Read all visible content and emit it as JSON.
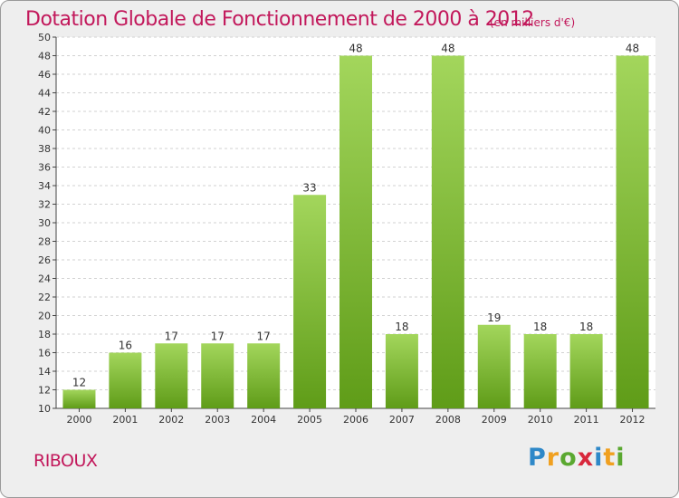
{
  "title": "Dotation Globale de Fonctionnement de 2000 à 2012",
  "unit_note": "(en milliers d'€)",
  "commune": "RIBOUX",
  "brand": {
    "letters": [
      "P",
      "r",
      "o",
      "x",
      "i",
      "t",
      "i"
    ],
    "colors": [
      "#2e88c8",
      "#f0a020",
      "#5aa830",
      "#d8283c",
      "#2e88c8",
      "#f0a020",
      "#5aa830"
    ]
  },
  "colors": {
    "bar_top": "#a3d65c",
    "bar_bottom": "#5f9c18",
    "title": "#c2185b",
    "grid": "#d2d2d2"
  },
  "chart_data": {
    "type": "bar",
    "title": "Dotation Globale de Fonctionnement de 2000 à 2012",
    "xlabel": "",
    "ylabel": "",
    "categories": [
      "2000",
      "2001",
      "2002",
      "2003",
      "2004",
      "2005",
      "2006",
      "2007",
      "2008",
      "2009",
      "2010",
      "2011",
      "2012"
    ],
    "values": [
      12,
      16,
      17,
      17,
      17,
      33,
      48,
      18,
      48,
      19,
      18,
      18,
      48
    ],
    "ylim": [
      10,
      50
    ],
    "ytick_step": 2,
    "grid": true,
    "legend": "none"
  }
}
